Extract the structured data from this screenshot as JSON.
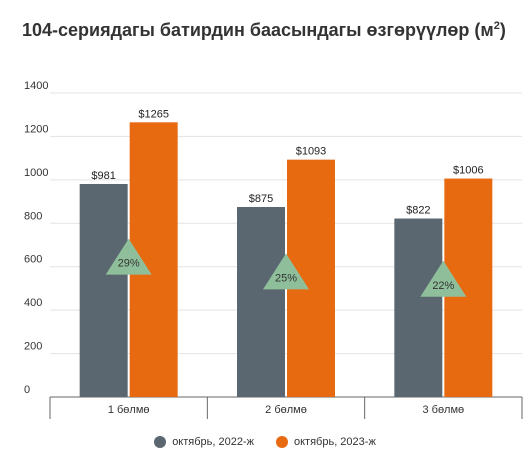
{
  "title_text": "104-сериядагы батирдин баасындагы өзгөрүүлөр (м",
  "title_sup": "2",
  "title_close": ")",
  "chart_data": {
    "type": "bar",
    "title": "104-сериядагы батирдин баасындагы өзгөрүүлөр (м²)",
    "categories": [
      "1 бөлмө",
      "2 бөлмө",
      "3 бөлмө"
    ],
    "series": [
      {
        "name": "октябрь, 2022-ж",
        "values": [
          981,
          875,
          822
        ],
        "labels": [
          "$981",
          "$875",
          "$822"
        ],
        "color": "#5b6770"
      },
      {
        "name": "октябрь, 2023-ж",
        "values": [
          1265,
          1093,
          1006
        ],
        "labels": [
          "$1265",
          "$1093",
          "$1006"
        ],
        "color": "#e86a10"
      }
    ],
    "change_labels": [
      "29%",
      "25%",
      "22%"
    ],
    "change_marker_color": "#8fbf9a",
    "ylim": [
      0,
      1400
    ],
    "yticks": [
      "0",
      "200",
      "400",
      "600",
      "800",
      "1000",
      "1200",
      "1400"
    ],
    "grid": true,
    "legend_position": "bottom"
  }
}
